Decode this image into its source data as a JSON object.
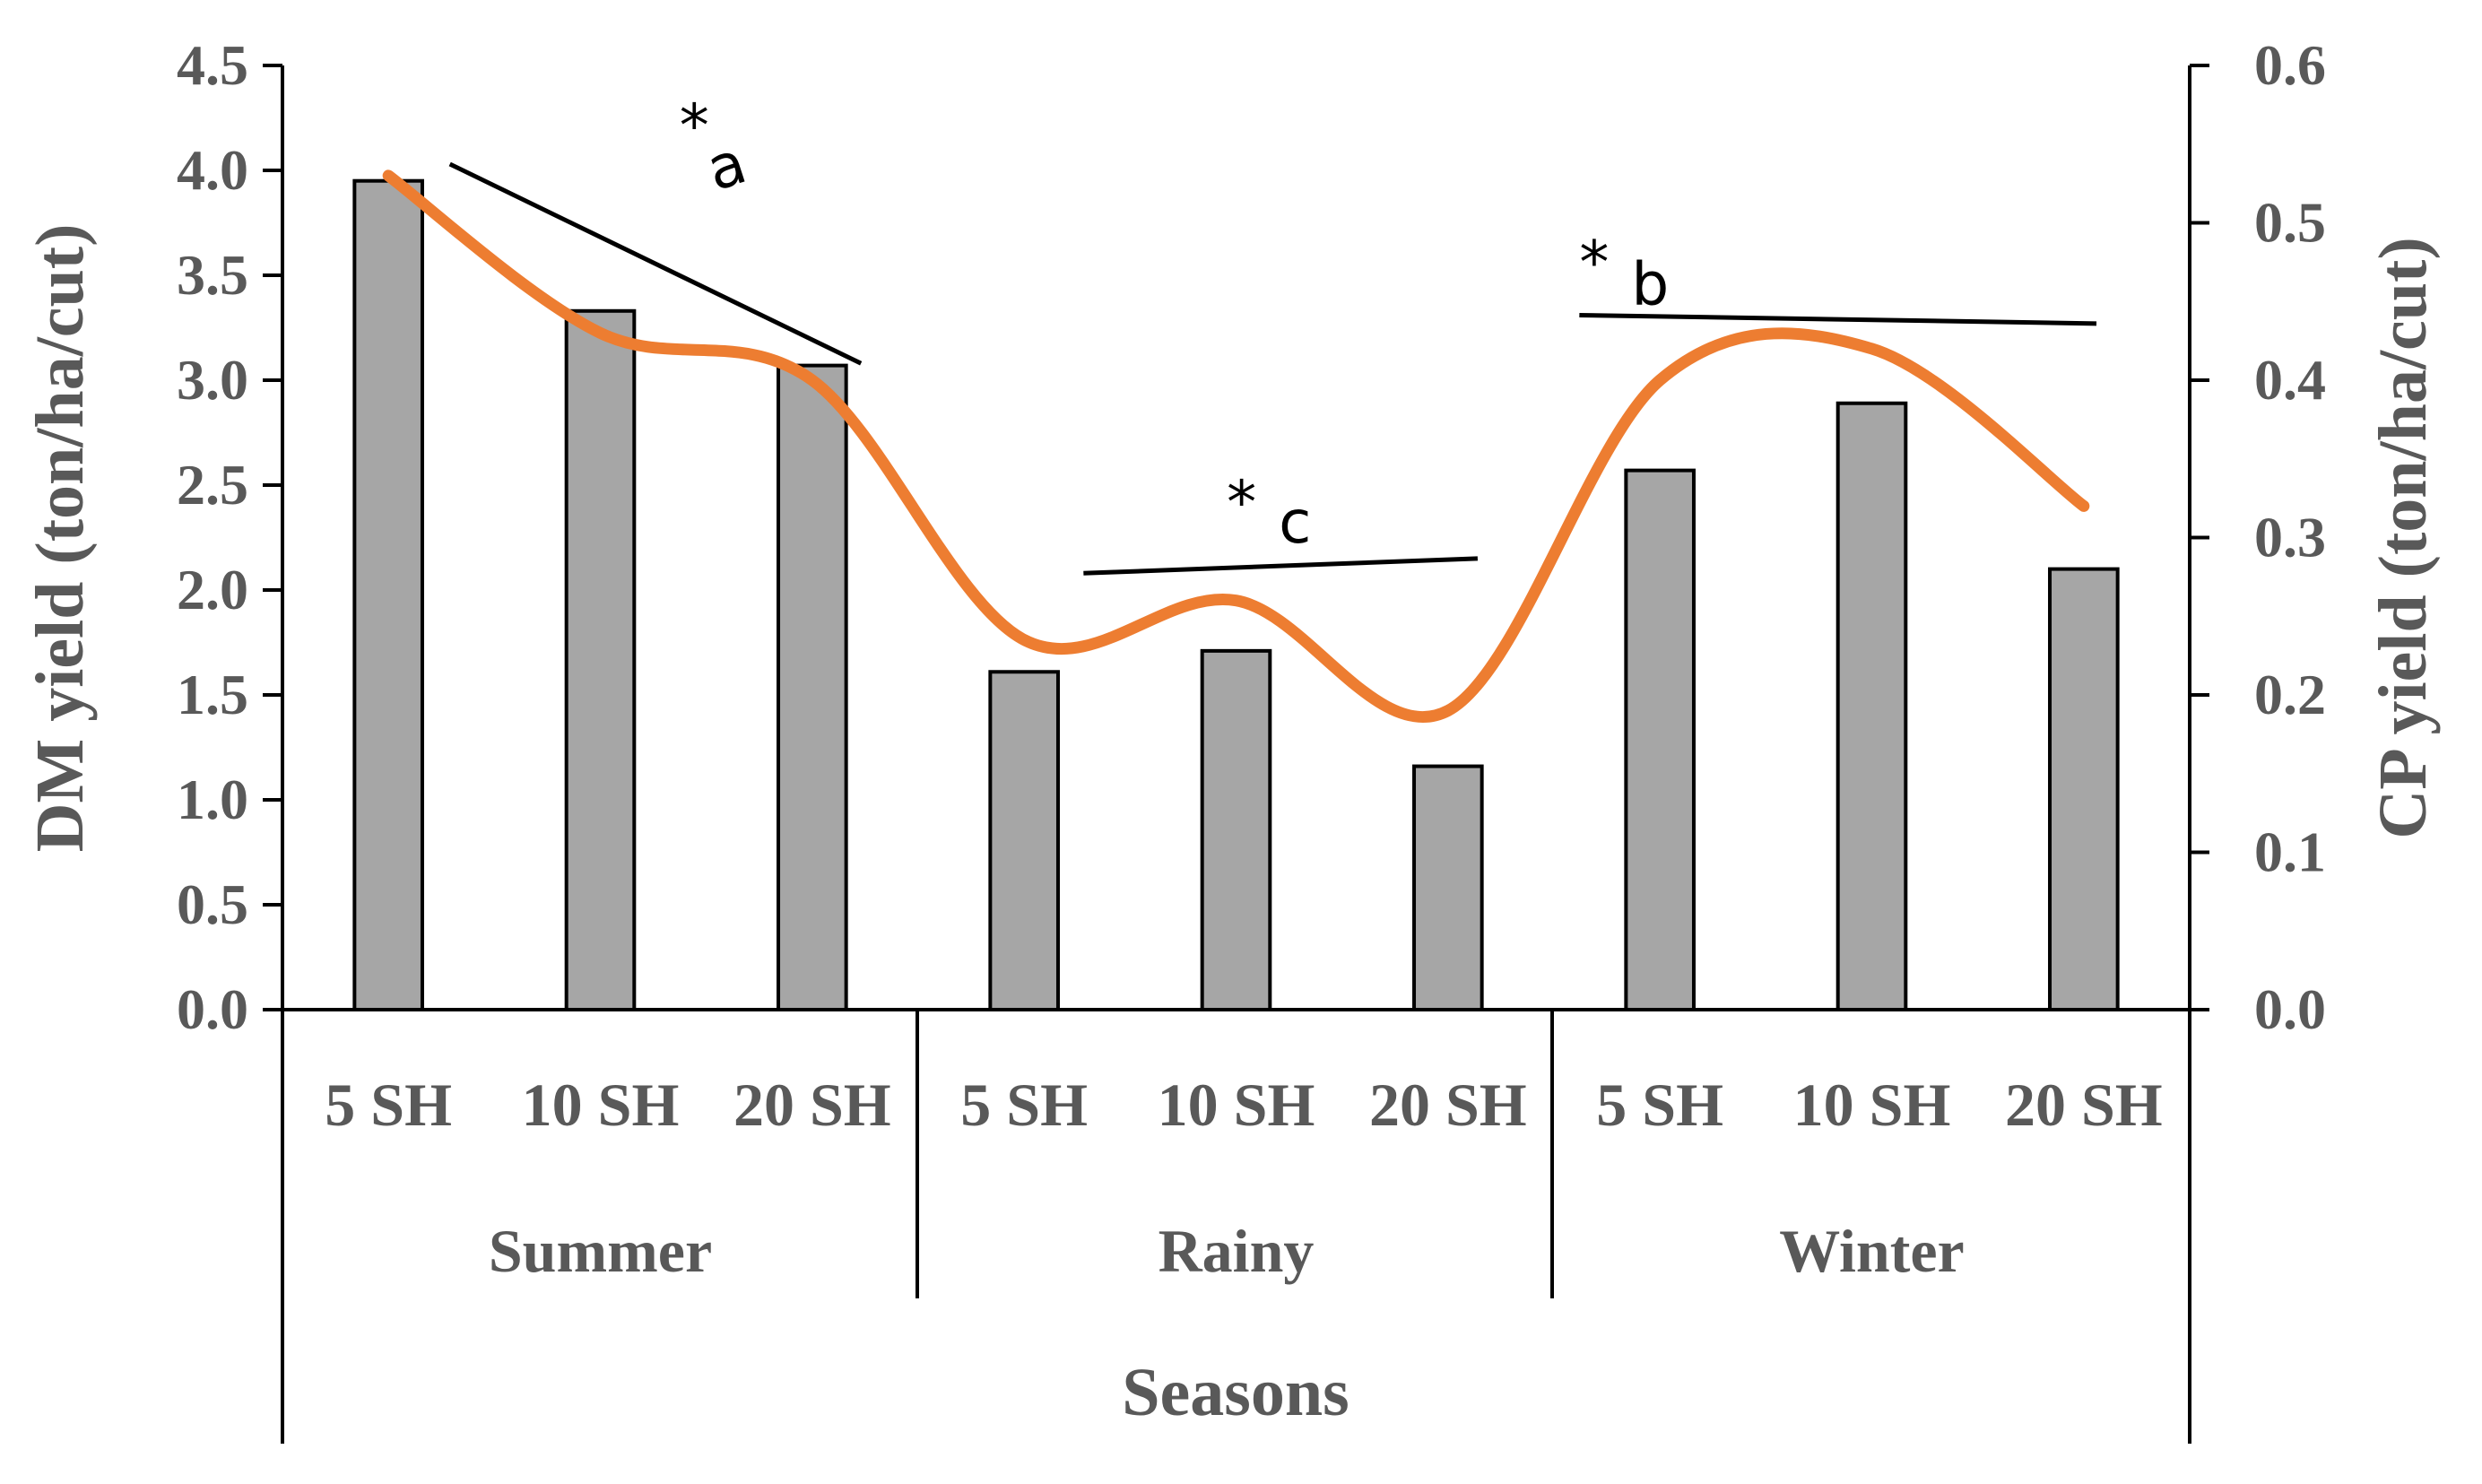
{
  "chart_data": {
    "type": "bar+line",
    "title": "",
    "xlabel": "Seasons",
    "groups": [
      "Summer",
      "Rainy",
      "Winter"
    ],
    "categories": [
      "5 SH",
      "10 SH",
      "20 SH",
      "5 SH",
      "10 SH",
      "20 SH",
      "5 SH",
      "10 SH",
      "20 SH"
    ],
    "series": [
      {
        "name": "DM yield",
        "type": "bar",
        "axis": "left",
        "color": "#a6a6a6",
        "values": [
          3.95,
          3.33,
          3.07,
          1.61,
          1.71,
          1.16,
          2.57,
          2.89,
          2.1
        ]
      },
      {
        "name": "CP yield",
        "type": "line",
        "axis": "right",
        "color": "#ed7d31",
        "values": [
          0.53,
          0.43,
          0.4,
          0.235,
          0.26,
          0.19,
          0.4,
          0.42,
          0.32
        ]
      }
    ],
    "y_left": {
      "label": "DM yield (ton/ha/cut)",
      "range": [
        0,
        4.5
      ],
      "ticks": [
        "0.0",
        "0.5",
        "1.0",
        "1.5",
        "2.0",
        "2.5",
        "3.0",
        "3.5",
        "4.0",
        "4.5"
      ]
    },
    "y_right": {
      "label": "CP yield (ton/ha/cut)",
      "range": [
        0,
        0.6
      ],
      "ticks": [
        "0.0",
        "0.1",
        "0.2",
        "0.3",
        "0.4",
        "0.5",
        "0.6"
      ]
    },
    "annotations": [
      {
        "star": "*",
        "letter": "a",
        "group": "Summer",
        "trend_start": 4.03,
        "trend_end": 3.08
      },
      {
        "star": "*",
        "letter": "c",
        "group": "Rainy",
        "trend_start": 2.08,
        "trend_end": 2.15
      },
      {
        "star": "*",
        "letter": "b",
        "group": "Winter",
        "trend_start": 3.31,
        "trend_end": 3.27
      }
    ]
  }
}
